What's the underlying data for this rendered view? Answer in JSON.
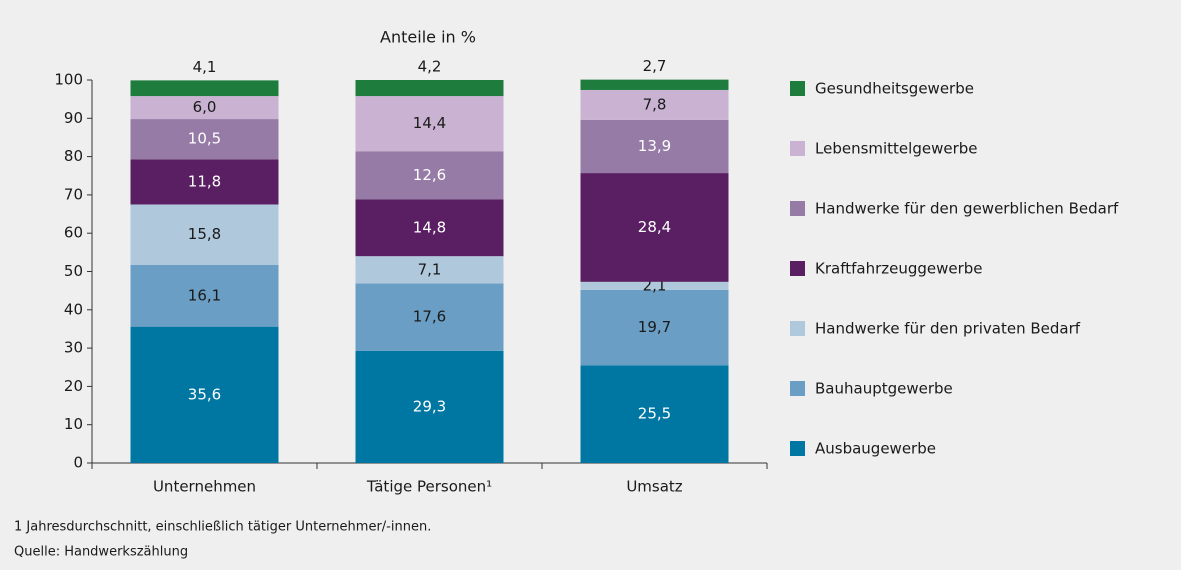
{
  "chart_data": {
    "type": "stacked_bar",
    "y_label": "Anteile in %",
    "categories": [
      "Unternehmen",
      "Tätige Personen¹",
      "Umsatz"
    ],
    "series": [
      {
        "name": "Ausbaugewerbe",
        "color": "#0077a3",
        "values": [
          35.6,
          29.3,
          25.5
        ],
        "value_labels": [
          "35,6",
          "29,3",
          "25,5"
        ]
      },
      {
        "name": "Bauhauptgewerbe",
        "color": "#6a9ec4",
        "values": [
          16.1,
          17.6,
          19.7
        ],
        "value_labels": [
          "16,1",
          "17,6",
          "19,7"
        ]
      },
      {
        "name": "Handwerke für den privaten Bedarf",
        "color": "#afc8dc",
        "values": [
          15.8,
          7.1,
          2.1
        ],
        "value_labels": [
          "15,8",
          "7,1",
          "2,1"
        ]
      },
      {
        "name": "Kraftfahrzeuggewerbe",
        "color": "#5a1f62",
        "values": [
          11.8,
          14.8,
          28.4
        ],
        "value_labels": [
          "11,8",
          "14,8",
          "28,4"
        ]
      },
      {
        "name": "Handwerke für den gewerblichen Bedarf",
        "color": "#967ba7",
        "values": [
          10.5,
          12.6,
          13.9
        ],
        "value_labels": [
          "10,5",
          "12,6",
          "13,9"
        ]
      },
      {
        "name": "Lebensmittelgewerbe",
        "color": "#c9b2d2",
        "values": [
          6.0,
          14.4,
          7.8
        ],
        "value_labels": [
          "6,0",
          "14,4",
          "7,8"
        ]
      },
      {
        "name": "Gesundheitsgewerbe",
        "color": "#1e7d3c",
        "values": [
          4.1,
          4.2,
          2.7
        ],
        "value_labels": [
          "4,1",
          "4,2",
          "2,7"
        ]
      }
    ],
    "ylim": [
      0,
      100
    ],
    "yticks": [
      0,
      10,
      20,
      30,
      40,
      50,
      60,
      70,
      80,
      90,
      100
    ],
    "grid": false,
    "legend": "right",
    "footnotes": [
      "1 Jahresdurchschnitt, einschließlich tätiger Unternehmer/-innen.",
      "Quelle: Handwerkszählung"
    ]
  }
}
